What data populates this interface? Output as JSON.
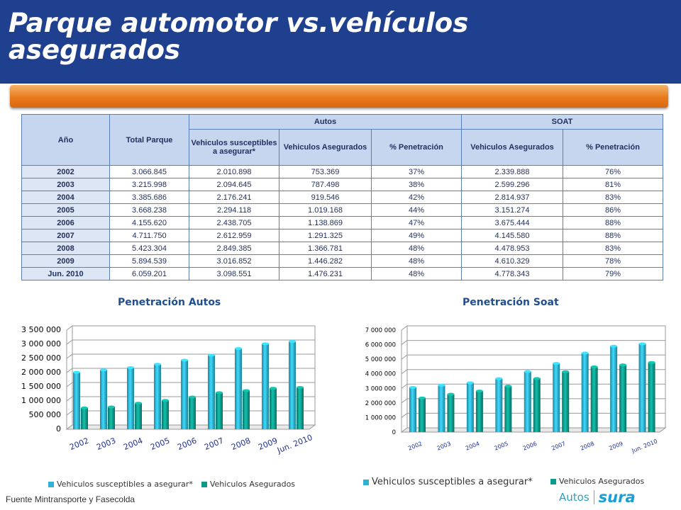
{
  "title": {
    "line1": "Parque automotor vs.vehículos",
    "line2": "asegurados"
  },
  "table": {
    "headers": {
      "year": "Año",
      "total": "Total Parque",
      "autos_group": "Autos",
      "soat_group": "SOAT",
      "susceptibles": "Vehiculos susceptibles a asegurar*",
      "asegurados": "Vehiculos Asegurados",
      "penetracion": "% Penetración",
      "soat_asegurados": "Vehiculos Asegurados",
      "soat_penetracion": "% Penetración"
    },
    "rows": [
      [
        "2002",
        "3.066.845",
        "2.010.898",
        "753.369",
        "37%",
        "2.339.888",
        "76%"
      ],
      [
        "2003",
        "3.215.998",
        "2.094.645",
        "787.498",
        "38%",
        "2.599.296",
        "81%"
      ],
      [
        "2004",
        "3.385.686",
        "2.176.241",
        "919.546",
        "42%",
        "2.814.937",
        "83%"
      ],
      [
        "2005",
        "3.668.238",
        "2.294.118",
        "1.019.168",
        "44%",
        "3.151.274",
        "86%"
      ],
      [
        "2006",
        "4.155.620",
        "2.438.705",
        "1.138.869",
        "47%",
        "3.675.444",
        "88%"
      ],
      [
        "2007",
        "4.711.750",
        "2.612.959",
        "1.291.325",
        "49%",
        "4.145.580",
        "88%"
      ],
      [
        "2008",
        "5.423.304",
        "2.849.385",
        "1.366.781",
        "48%",
        "4.478.953",
        "83%"
      ],
      [
        "2009",
        "5.894.539",
        "3.016.852",
        "1.446.282",
        "48%",
        "4.610.329",
        "78%"
      ],
      [
        "Jun. 2010",
        "6.059.201",
        "3.098.551",
        "1.476.231",
        "48%",
        "4.778.343",
        "79%"
      ]
    ]
  },
  "chart_data": [
    {
      "type": "bar",
      "title": "Penetración Autos",
      "categories": [
        "2002",
        "2003",
        "2004",
        "2005",
        "2006",
        "2007",
        "2008",
        "2009",
        "Jun. 2010"
      ],
      "series": [
        {
          "name": "Vehiculos susceptibles a asegurar*",
          "color": "#2fb1d4",
          "values": [
            2010898,
            2094645,
            2176241,
            2294118,
            2438705,
            2612959,
            2849385,
            3016852,
            3098551
          ]
        },
        {
          "name": "Vehiculos Asegurados",
          "color": "#0e9a8a",
          "values": [
            753369,
            787498,
            919546,
            1019168,
            1138869,
            1291325,
            1366781,
            1446282,
            1476231
          ]
        }
      ],
      "ylim": [
        0,
        3500000
      ],
      "yticks": [
        0,
        500000,
        1000000,
        1500000,
        2000000,
        2500000,
        3000000,
        3500000
      ],
      "ytick_labels": [
        "0",
        "500 000",
        "1 000 000",
        "1 500 000",
        "2 000 000",
        "2 500 000",
        "3 000 000",
        "3 500 000"
      ],
      "grid": true,
      "legend": "bottom"
    },
    {
      "type": "bar",
      "title": "Penetración Soat",
      "categories": [
        "2002",
        "2003",
        "2004",
        "2005",
        "2006",
        "2007",
        "2008",
        "2009",
        "Jun. 2010"
      ],
      "series": [
        {
          "name": "Vehiculos susceptibles a asegurar*",
          "color": "#2fb1d4",
          "values": [
            3066845,
            3215998,
            3385686,
            3668238,
            4155620,
            4711750,
            5423304,
            5894539,
            6059201
          ]
        },
        {
          "name": "Vehiculos Asegurados",
          "color": "#0e9a8a",
          "values": [
            2339888,
            2599296,
            2814937,
            3151274,
            3675444,
            4145580,
            4478953,
            4610329,
            4778343
          ]
        }
      ],
      "ylim": [
        0,
        7000000
      ],
      "yticks": [
        0,
        1000000,
        2000000,
        3000000,
        4000000,
        5000000,
        6000000,
        7000000
      ],
      "ytick_labels": [
        "0",
        "1 000 000",
        "2 000 000",
        "3 000 000",
        "4 000 000",
        "5 000 000",
        "6 000 000",
        "7 000 000"
      ],
      "grid": true,
      "legend": "bottom"
    }
  ],
  "footer": "Fuente Mintransporte y Fasecolda",
  "logo": {
    "autos": "Autos",
    "sura": "sura"
  }
}
